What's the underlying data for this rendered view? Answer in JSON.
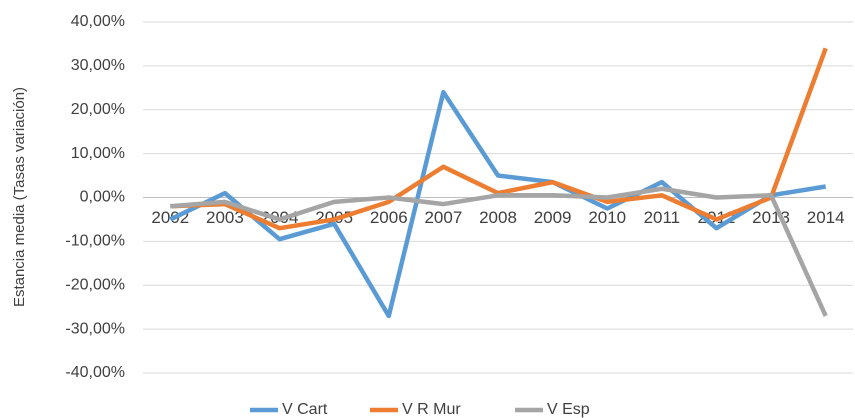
{
  "chart_data": {
    "type": "line",
    "y_axis_label": "Estancia media (Tasas variación)",
    "categories": [
      "2002",
      "2003",
      "2004",
      "2005",
      "2006",
      "2007",
      "2008",
      "2009",
      "2010",
      "2011",
      "2012",
      "2013",
      "2014"
    ],
    "series": [
      {
        "name": "V Cart",
        "color": "#5b9bd5",
        "values": [
          -5,
          1,
          -9.5,
          -6,
          -27,
          24,
          5,
          3.5,
          -2.5,
          3.5,
          -7,
          0.5,
          2.5
        ]
      },
      {
        "name": "V R Mur",
        "color": "#ed7d31",
        "values": [
          -2,
          -1.5,
          -7,
          -5,
          -1,
          7,
          1,
          3.5,
          -1,
          0.5,
          -5,
          0,
          34
        ]
      },
      {
        "name": "V Esp",
        "color": "#a5a5a5",
        "values": [
          -2,
          -1,
          -5,
          -1,
          0,
          -1.5,
          0.5,
          0.5,
          0,
          2,
          0,
          0.5,
          -27
        ]
      }
    ],
    "ylim": [
      -40,
      40
    ],
    "yticks": [
      {
        "value": -40,
        "label": "-40,00%"
      },
      {
        "value": -30,
        "label": "-30,00%"
      },
      {
        "value": -20,
        "label": "-20,00%"
      },
      {
        "value": -10,
        "label": "-10,00%"
      },
      {
        "value": 0,
        "label": "0,00%"
      },
      {
        "value": 10,
        "label": "10,00%"
      },
      {
        "value": 20,
        "label": "20,00%"
      },
      {
        "value": 30,
        "label": "30,00%"
      },
      {
        "value": 40,
        "label": "40,00%"
      }
    ],
    "grid": true,
    "legend": "bottom"
  }
}
